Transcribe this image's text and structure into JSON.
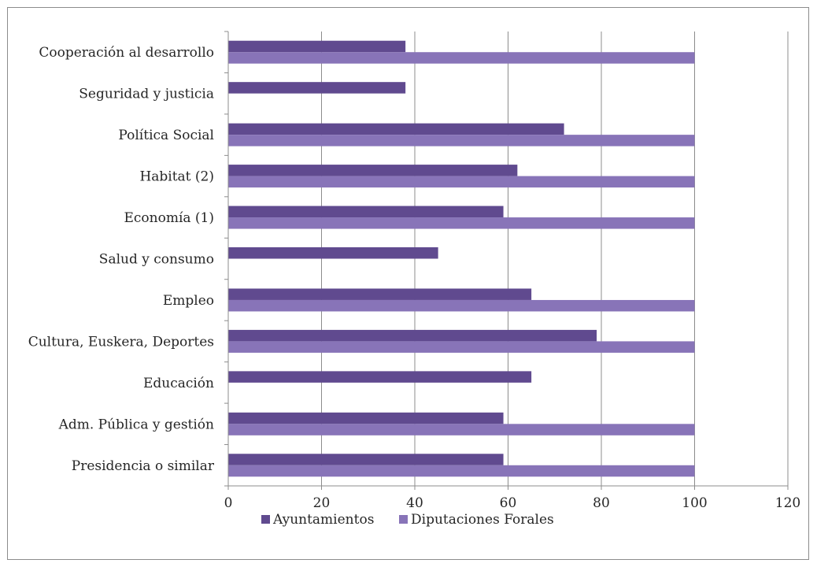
{
  "chart_data": {
    "type": "bar",
    "orientation": "horizontal",
    "categories": [
      "Cooperación al desarrollo",
      "Seguridad y justicia",
      "Política Social",
      "Habitat (2)",
      "Economía (1)",
      "Salud y consumo",
      "Empleo",
      "Cultura, Euskera, Deportes",
      "Educación",
      "Adm. Pública y gestión",
      "Presidencia o similar"
    ],
    "series": [
      {
        "name": "Ayuntamientos",
        "color": "#604a8f",
        "values": [
          38,
          38,
          72,
          62,
          59,
          45,
          65,
          79,
          65,
          59,
          59
        ]
      },
      {
        "name": "Diputaciones Forales",
        "color": "#8874b8",
        "values": [
          100,
          null,
          100,
          100,
          100,
          null,
          100,
          100,
          null,
          100,
          100
        ]
      }
    ],
    "xlim": [
      0,
      120
    ],
    "xticks": [
      "0",
      "20",
      "40",
      "60",
      "80",
      "100",
      "120"
    ],
    "grid": "vertical",
    "legend_position": "bottom",
    "title": "",
    "xlabel": "",
    "ylabel": ""
  }
}
